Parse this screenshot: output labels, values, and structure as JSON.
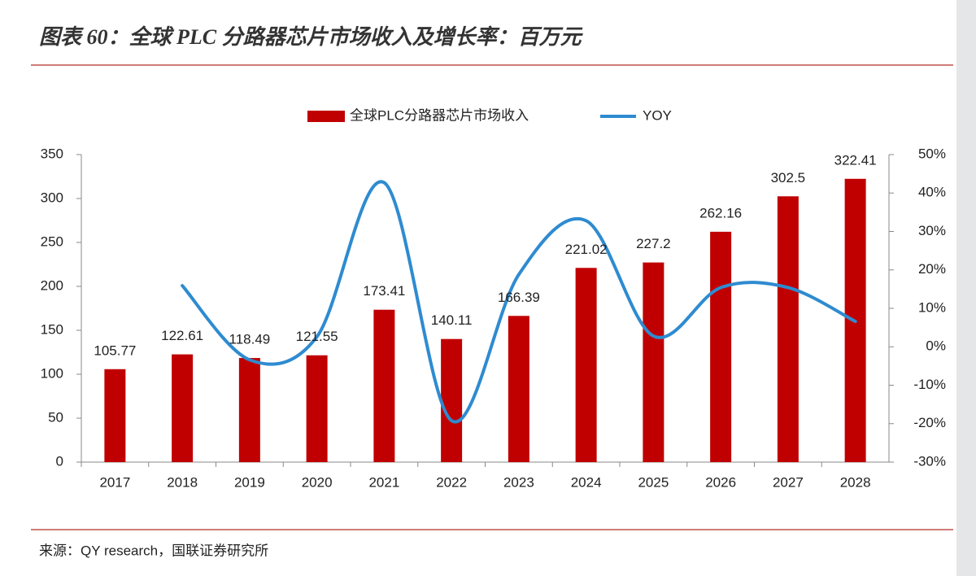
{
  "chart_data": {
    "type": "bar_line",
    "title": "图表 60：全球 PLC 分路器芯片市场收入及增长率：百万元",
    "source": "来源：QY research，国联证券研究所",
    "categories": [
      "2017",
      "2018",
      "2019",
      "2020",
      "2021",
      "2022",
      "2023",
      "2024",
      "2025",
      "2026",
      "2027",
      "2028"
    ],
    "series": [
      {
        "name": "全球PLC分路器芯片市场收入",
        "color": "#c00000",
        "values": [
          105.77,
          122.61,
          118.49,
          121.55,
          173.41,
          140.11,
          166.39,
          221.02,
          227.2,
          262.16,
          302.5,
          322.41
        ]
      },
      {
        "name": "YOY",
        "color": "#2e8bd0",
        "axis": "y2",
        "values": [
          null,
          15.9,
          -3.4,
          2.6,
          42.7,
          -19.2,
          18.8,
          32.8,
          2.8,
          15.4,
          15.4,
          6.6
        ]
      }
    ],
    "ylim": [
      0,
      350
    ],
    "yticks": [
      0,
      50,
      100,
      150,
      200,
      250,
      300,
      350
    ],
    "y2lim": [
      -30,
      50
    ],
    "y2ticks": [
      {
        "value": -30,
        "label": "-30%"
      },
      {
        "value": -20,
        "label": "-20%"
      },
      {
        "value": -10,
        "label": "-10%"
      },
      {
        "value": 0,
        "label": "0%"
      },
      {
        "value": 10,
        "label": "10%"
      },
      {
        "value": 20,
        "label": "20%"
      },
      {
        "value": 30,
        "label": "30%"
      },
      {
        "value": 40,
        "label": "40%"
      },
      {
        "value": 50,
        "label": "50%"
      }
    ],
    "legend": "top"
  }
}
